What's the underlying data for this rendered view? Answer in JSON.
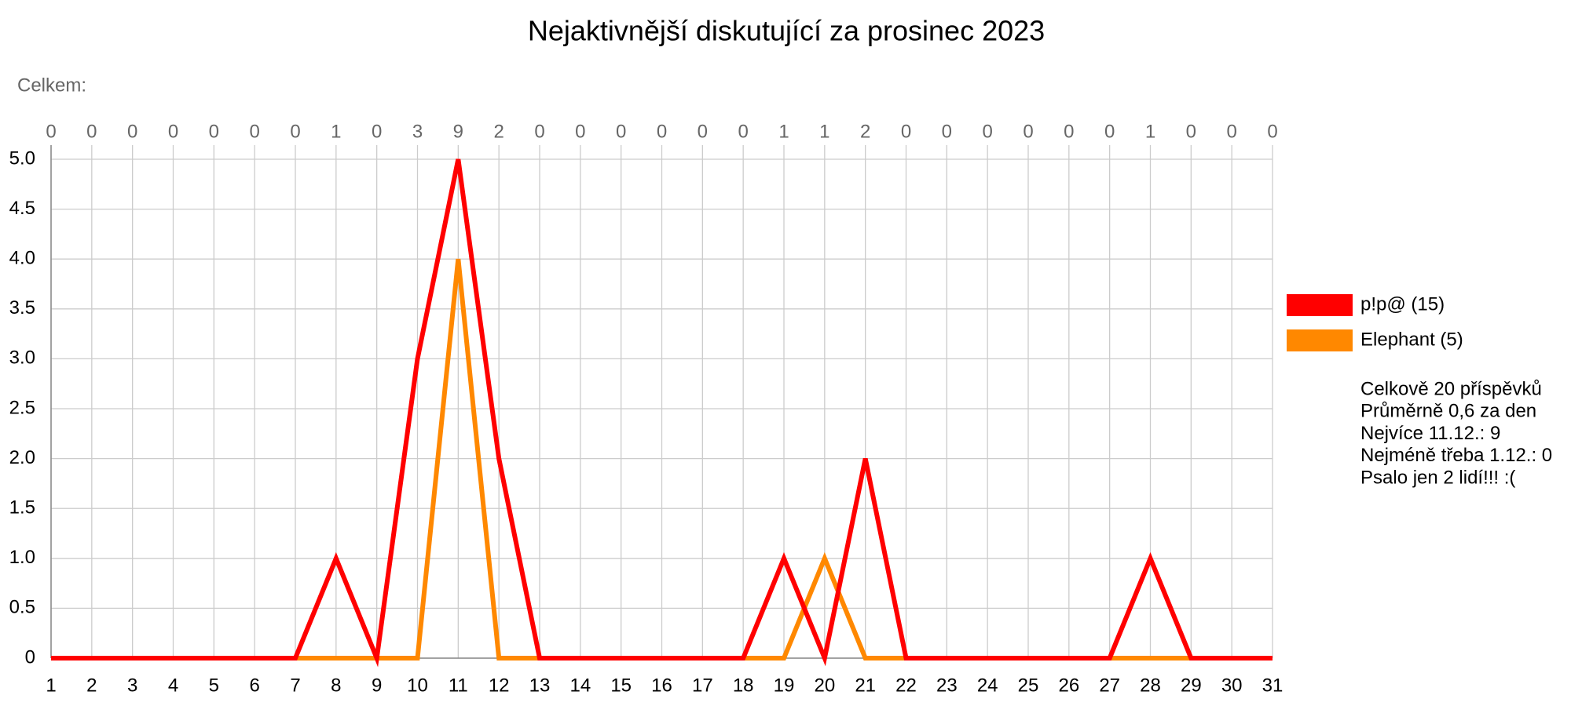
{
  "chart_data": {
    "type": "line",
    "title": "Nejaktivnější diskutující za prosinec 2023",
    "subtitle": "Celkem:",
    "x": [
      1,
      2,
      3,
      4,
      5,
      6,
      7,
      8,
      9,
      10,
      11,
      12,
      13,
      14,
      15,
      16,
      17,
      18,
      19,
      20,
      21,
      22,
      23,
      24,
      25,
      26,
      27,
      28,
      29,
      30,
      31
    ],
    "xlim": [
      1,
      31
    ],
    "totals": [
      0,
      0,
      0,
      0,
      0,
      0,
      0,
      1,
      0,
      3,
      9,
      2,
      0,
      0,
      0,
      0,
      0,
      0,
      1,
      1,
      2,
      0,
      0,
      0,
      0,
      0,
      0,
      1,
      0,
      0,
      0
    ],
    "series": [
      {
        "name": "p!p@ (15)",
        "color": "#ff0000",
        "values": [
          0,
          0,
          0,
          0,
          0,
          0,
          0,
          1,
          0,
          3,
          5,
          2,
          0,
          0,
          0,
          0,
          0,
          0,
          1,
          0,
          2,
          0,
          0,
          0,
          0,
          0,
          0,
          1,
          0,
          0,
          0
        ]
      },
      {
        "name": "Elephant (5)",
        "color": "#ff8800",
        "values": [
          0,
          0,
          0,
          0,
          0,
          0,
          0,
          0,
          0,
          0,
          4,
          0,
          0,
          0,
          0,
          0,
          0,
          0,
          0,
          1,
          0,
          0,
          0,
          0,
          0,
          0,
          0,
          0,
          0,
          0,
          0
        ]
      }
    ],
    "ylim": [
      0,
      5
    ],
    "yticks": [
      0,
      0.5,
      {
        "value": 1,
        "label": "1.0"
      },
      1.5,
      {
        "value": 2,
        "label": "2.0"
      },
      2.5,
      {
        "value": 3,
        "label": "3.0"
      },
      3.5,
      {
        "value": 4,
        "label": "4.0"
      },
      4.5,
      {
        "value": 5,
        "label": "5.0"
      }
    ],
    "grid": true,
    "legend": "right",
    "notes": [
      "Celkově 20 příspěvků",
      "Průměrně 0,6 za den",
      "Nejvíce 11.12.: 9",
      "Nejméně třeba 1.12.: 0",
      "Psalo jen 2 lidí!!! :("
    ]
  }
}
